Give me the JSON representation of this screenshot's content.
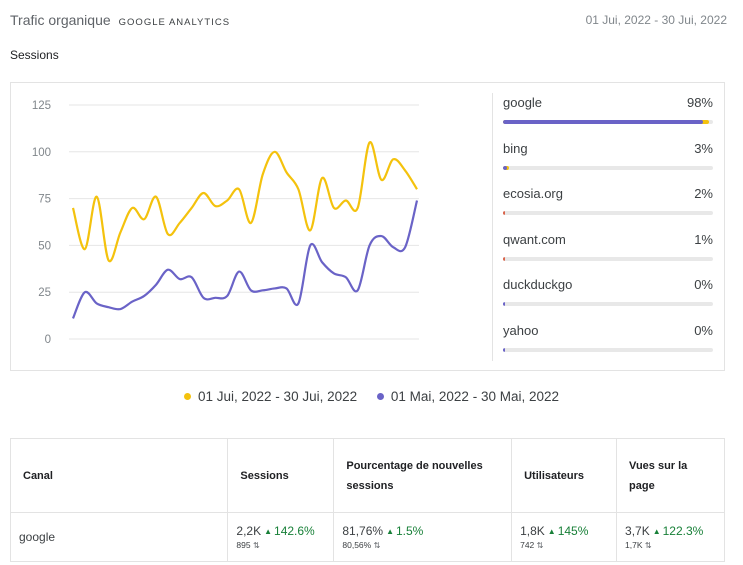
{
  "header": {
    "title": "Trafic organique",
    "subtitle": "GOOGLE ANALYTICS",
    "date_range": "01 Jui, 2022 - 30 Jui, 2022"
  },
  "section_label": "Sessions",
  "colors": {
    "current": "#f4c20d",
    "previous": "#6a63c7",
    "small_share": "#d9634a",
    "track": "#e8e8e8"
  },
  "chart_data": {
    "type": "line",
    "title": "",
    "xlabel": "",
    "ylabel": "",
    "ylim": [
      0,
      125
    ],
    "yticks": [
      0,
      25,
      50,
      75,
      100,
      125
    ],
    "grid": true,
    "legend": "bottom",
    "series": [
      {
        "name": "01 Jui, 2022 - 30 Jui, 2022",
        "values": [
          70,
          48,
          76,
          42,
          57,
          70,
          64,
          76,
          56,
          62,
          70,
          78,
          71,
          74,
          80,
          62,
          88,
          100,
          89,
          80,
          58,
          86,
          70,
          74,
          70,
          105,
          85,
          96,
          90,
          80
        ]
      },
      {
        "name": "01 Mai, 2022 - 30 Mai, 2022",
        "values": [
          11,
          25,
          19,
          17,
          16,
          20,
          23,
          29,
          37,
          32,
          33,
          22,
          22,
          23,
          36,
          26,
          26,
          27,
          27,
          19,
          50,
          41,
          35,
          33,
          26,
          50,
          55,
          49,
          49,
          74
        ]
      }
    ]
  },
  "sources": [
    {
      "name": "google",
      "pct": "98%",
      "share": 98,
      "prev_share": 95
    },
    {
      "name": "bing",
      "pct": "3%",
      "share": 3,
      "prev_share": 2
    },
    {
      "name": "ecosia.org",
      "pct": "2%",
      "share": 2,
      "prev_share": 0
    },
    {
      "name": "qwant.com",
      "pct": "1%",
      "share": 1,
      "prev_share": 0
    },
    {
      "name": "duckduckgo",
      "pct": "0%",
      "share": 0,
      "prev_share": 0.5
    },
    {
      "name": "yahoo",
      "pct": "0%",
      "share": 0,
      "prev_share": 0.5
    }
  ],
  "table": {
    "headers": {
      "canal": "Canal",
      "sessions": "Sessions",
      "new_sessions": "Pourcentage de nouvelles sessions",
      "users": "Utilisateurs",
      "pageviews": "Vues sur la page"
    },
    "rows": [
      {
        "canal": "google",
        "sessions": {
          "value": "2,2K",
          "change": "142.6%",
          "prev": "895"
        },
        "new_sessions": {
          "value": "81,76%",
          "change": "1.5%",
          "prev": "80,56%"
        },
        "users": {
          "value": "1,8K",
          "change": "145%",
          "prev": "742"
        },
        "pageviews": {
          "value": "3,7K",
          "change": "122.3%",
          "prev": "1,7K"
        }
      }
    ]
  }
}
